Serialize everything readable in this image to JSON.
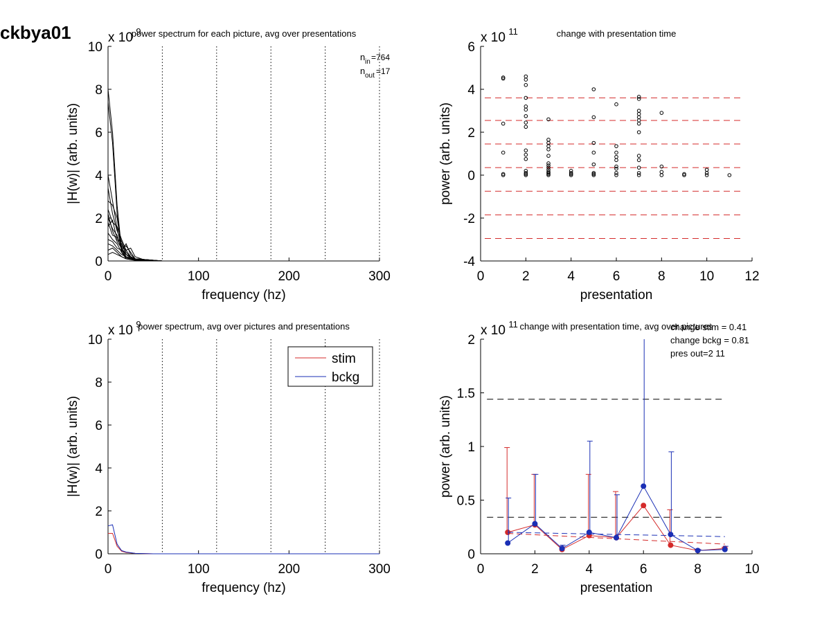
{
  "figure_label": "ckbya01",
  "chart_data": [
    {
      "id": "tl",
      "type": "line",
      "title": "power spectrum for each picture, avg over presentations",
      "xlabel": "frequency (hz)",
      "ylabel": "|H(w)| (arb. units)",
      "exponent": {
        "base": "x 10",
        "power": "9"
      },
      "xlim": [
        0,
        300
      ],
      "ylim": [
        0,
        10
      ],
      "xticks": [
        "0",
        "100",
        "200",
        "300"
      ],
      "yticks": [
        "0",
        "2",
        "4",
        "6",
        "8",
        "10"
      ],
      "vlines": [
        60,
        120,
        180,
        240,
        300
      ],
      "annotation": {
        "n_in": "764",
        "n_out": "17",
        "n_label": "n",
        "in_sub": "in",
        "out_sub": "out"
      },
      "curves": [
        [
          [
            0,
            8.0
          ],
          [
            5,
            6.0
          ],
          [
            10,
            2.6
          ],
          [
            15,
            0.5
          ],
          [
            20,
            0.15
          ],
          [
            30,
            0.05
          ],
          [
            40,
            0.02
          ],
          [
            50,
            0.01
          ],
          [
            60,
            0
          ],
          [
            300,
            0
          ]
        ],
        [
          [
            0,
            7.4
          ],
          [
            5,
            5.5
          ],
          [
            10,
            2.2
          ],
          [
            15,
            0.4
          ],
          [
            20,
            0.1
          ],
          [
            30,
            0.04
          ],
          [
            40,
            0.01
          ],
          [
            60,
            0
          ],
          [
            300,
            0
          ]
        ],
        [
          [
            0,
            4.0
          ],
          [
            5,
            2.8
          ],
          [
            10,
            1.5
          ],
          [
            15,
            0.6
          ],
          [
            20,
            0.2
          ],
          [
            30,
            0.05
          ],
          [
            40,
            0.01
          ],
          [
            60,
            0
          ],
          [
            300,
            0
          ]
        ],
        [
          [
            0,
            3.4
          ],
          [
            5,
            2.2
          ],
          [
            10,
            1.4
          ],
          [
            15,
            0.9
          ],
          [
            20,
            0.4
          ],
          [
            25,
            0.2
          ],
          [
            30,
            0.05
          ],
          [
            60,
            0
          ],
          [
            300,
            0
          ]
        ],
        [
          [
            0,
            2.8
          ],
          [
            5,
            2.6
          ],
          [
            10,
            2.0
          ],
          [
            15,
            0.6
          ],
          [
            20,
            0.3
          ],
          [
            30,
            0.1
          ],
          [
            60,
            0
          ],
          [
            300,
            0
          ]
        ],
        [
          [
            0,
            2.4
          ],
          [
            5,
            1.8
          ],
          [
            10,
            1.6
          ],
          [
            15,
            1.0
          ],
          [
            20,
            0.5
          ],
          [
            25,
            0.2
          ],
          [
            30,
            0.05
          ],
          [
            60,
            0
          ],
          [
            300,
            0
          ]
        ],
        [
          [
            0,
            2.0
          ],
          [
            5,
            1.5
          ],
          [
            10,
            1.2
          ],
          [
            15,
            0.5
          ],
          [
            20,
            0.8
          ],
          [
            25,
            0.3
          ],
          [
            30,
            0.1
          ],
          [
            60,
            0
          ],
          [
            300,
            0
          ]
        ],
        [
          [
            0,
            1.6
          ],
          [
            5,
            1.9
          ],
          [
            10,
            1.0
          ],
          [
            15,
            0.7
          ],
          [
            20,
            0.5
          ],
          [
            25,
            0.6
          ],
          [
            30,
            0.2
          ],
          [
            40,
            0.05
          ],
          [
            60,
            0
          ],
          [
            300,
            0
          ]
        ],
        [
          [
            0,
            1.3
          ],
          [
            5,
            1.0
          ],
          [
            10,
            0.8
          ],
          [
            15,
            0.4
          ],
          [
            20,
            0.2
          ],
          [
            30,
            0.1
          ],
          [
            45,
            0.05
          ],
          [
            60,
            0
          ],
          [
            300,
            0
          ]
        ],
        [
          [
            0,
            1.0
          ],
          [
            5,
            0.9
          ],
          [
            10,
            0.6
          ],
          [
            15,
            0.5
          ],
          [
            20,
            0.3
          ],
          [
            25,
            0.15
          ],
          [
            35,
            0.05
          ],
          [
            60,
            0
          ],
          [
            300,
            0
          ]
        ],
        [
          [
            0,
            0.8
          ],
          [
            5,
            0.7
          ],
          [
            10,
            0.5
          ],
          [
            15,
            0.3
          ],
          [
            20,
            0.2
          ],
          [
            30,
            0.08
          ],
          [
            50,
            0.02
          ],
          [
            60,
            0
          ],
          [
            300,
            0
          ]
        ],
        [
          [
            0,
            0.5
          ],
          [
            5,
            0.6
          ],
          [
            10,
            0.4
          ],
          [
            15,
            0.2
          ],
          [
            20,
            0.1
          ],
          [
            30,
            0.05
          ],
          [
            60,
            0
          ],
          [
            300,
            0
          ]
        ],
        [
          [
            0,
            2.2
          ],
          [
            5,
            1.4
          ],
          [
            10,
            0.9
          ],
          [
            15,
            0.6
          ],
          [
            20,
            0.7
          ],
          [
            25,
            0.4
          ],
          [
            30,
            0.1
          ],
          [
            60,
            0
          ],
          [
            300,
            0
          ]
        ],
        [
          [
            0,
            1.8
          ],
          [
            5,
            1.2
          ],
          [
            10,
            1.1
          ],
          [
            15,
            0.8
          ],
          [
            20,
            0.3
          ],
          [
            30,
            0.1
          ],
          [
            60,
            0
          ],
          [
            300,
            0
          ]
        ],
        [
          [
            0,
            0.3
          ],
          [
            5,
            0.4
          ],
          [
            10,
            0.3
          ],
          [
            15,
            0.2
          ],
          [
            20,
            0.1
          ],
          [
            30,
            0.03
          ],
          [
            60,
            0
          ],
          [
            300,
            0
          ]
        ]
      ]
    },
    {
      "id": "tr",
      "type": "scatter",
      "title": "change with presentation time",
      "xlabel": "presentation",
      "ylabel": "power (arb. units)",
      "exponent": {
        "base": "x 10",
        "power": "11"
      },
      "xlim": [
        0,
        12
      ],
      "ylim": [
        -4,
        6
      ],
      "xticks": [
        "0",
        "2",
        "4",
        "6",
        "8",
        "10",
        "12"
      ],
      "yticks": [
        "-4",
        "-2",
        "0",
        "2",
        "4",
        "6"
      ],
      "hlines": [
        3.6,
        2.55,
        1.45,
        0.35,
        -0.75,
        -1.85,
        -2.95
      ],
      "hline_xrange": [
        0,
        11.5
      ],
      "hline_color": "#d42a2a",
      "points": [
        [
          1,
          4.5
        ],
        [
          1,
          4.55
        ],
        [
          1,
          2.4
        ],
        [
          1,
          1.05
        ],
        [
          1,
          0.05
        ],
        [
          1,
          0
        ],
        [
          2,
          4.6
        ],
        [
          2,
          4.45
        ],
        [
          2,
          4.2
        ],
        [
          2,
          3.6
        ],
        [
          2,
          3.2
        ],
        [
          2,
          3.05
        ],
        [
          2,
          2.75
        ],
        [
          2,
          2.45
        ],
        [
          2,
          2.25
        ],
        [
          2,
          1.15
        ],
        [
          2,
          0.95
        ],
        [
          2,
          0.75
        ],
        [
          2,
          0.2
        ],
        [
          2,
          0.1
        ],
        [
          2,
          0.05
        ],
        [
          2,
          0
        ],
        [
          3,
          2.6
        ],
        [
          3,
          1.65
        ],
        [
          3,
          1.5
        ],
        [
          3,
          1.35
        ],
        [
          3,
          1.2
        ],
        [
          3,
          0.9
        ],
        [
          3,
          0.55
        ],
        [
          3,
          0.45
        ],
        [
          3,
          0.35
        ],
        [
          3,
          0.25
        ],
        [
          3,
          0.15
        ],
        [
          3,
          0.1
        ],
        [
          3,
          0.05
        ],
        [
          3,
          0
        ],
        [
          4,
          0.2
        ],
        [
          4,
          0.1
        ],
        [
          4,
          0.05
        ],
        [
          4,
          0
        ],
        [
          5,
          4.0
        ],
        [
          5,
          2.7
        ],
        [
          5,
          1.5
        ],
        [
          5,
          1.05
        ],
        [
          5,
          0.5
        ],
        [
          5,
          0.1
        ],
        [
          5,
          0.05
        ],
        [
          5,
          0
        ],
        [
          6,
          3.3
        ],
        [
          6,
          1.35
        ],
        [
          6,
          1.05
        ],
        [
          6,
          0.85
        ],
        [
          6,
          0.7
        ],
        [
          6,
          0.4
        ],
        [
          6,
          0.3
        ],
        [
          6,
          0.1
        ],
        [
          6,
          0
        ],
        [
          7,
          3.65
        ],
        [
          7,
          3.55
        ],
        [
          7,
          3.0
        ],
        [
          7,
          2.85
        ],
        [
          7,
          2.7
        ],
        [
          7,
          2.55
        ],
        [
          7,
          2.4
        ],
        [
          7,
          2.0
        ],
        [
          7,
          0.9
        ],
        [
          7,
          0.7
        ],
        [
          7,
          0.35
        ],
        [
          7,
          0.1
        ],
        [
          7,
          0
        ],
        [
          8,
          2.9
        ],
        [
          8,
          0.4
        ],
        [
          8,
          0.15
        ],
        [
          8,
          0
        ],
        [
          9,
          0.05
        ],
        [
          9,
          0
        ],
        [
          10,
          0.25
        ],
        [
          10,
          0.1
        ],
        [
          10,
          0
        ],
        [
          11,
          0
        ]
      ]
    },
    {
      "id": "bl",
      "type": "line",
      "title": "power spectrum, avg over pictures and presentations",
      "xlabel": "frequency (hz)",
      "ylabel": "|H(w)| (arb. units)",
      "exponent": {
        "base": "x 10",
        "power": "9"
      },
      "xlim": [
        0,
        300
      ],
      "ylim": [
        0,
        10
      ],
      "xticks": [
        "0",
        "100",
        "200",
        "300"
      ],
      "yticks": [
        "0",
        "2",
        "4",
        "6",
        "8",
        "10"
      ],
      "vlines": [
        60,
        120,
        180,
        240,
        300
      ],
      "series": [
        {
          "name": "stim",
          "color": "#d42a2a",
          "points": [
            [
              0,
              0.95
            ],
            [
              5,
              0.95
            ],
            [
              10,
              0.35
            ],
            [
              15,
              0.12
            ],
            [
              20,
              0.06
            ],
            [
              30,
              0.02
            ],
            [
              50,
              0
            ],
            [
              300,
              0
            ]
          ]
        },
        {
          "name": "bckg",
          "color": "#1a2fb5",
          "points": [
            [
              0,
              1.3
            ],
            [
              5,
              1.35
            ],
            [
              10,
              0.45
            ],
            [
              15,
              0.15
            ],
            [
              20,
              0.08
            ],
            [
              30,
              0.02
            ],
            [
              50,
              0
            ],
            [
              300,
              0
            ]
          ]
        }
      ],
      "legend": "top-right"
    },
    {
      "id": "br",
      "type": "line",
      "title": "change with presentation time, avg over pictures",
      "xlabel": "presentation",
      "ylabel": "power (arb. units)",
      "exponent": {
        "base": "x 10",
        "power": "11"
      },
      "xlim": [
        0,
        10
      ],
      "ylim": [
        0,
        2
      ],
      "xticks": [
        "0",
        "2",
        "4",
        "6",
        "8",
        "10"
      ],
      "yticks": [
        "0",
        "0.5",
        "1",
        "1.5",
        "2"
      ],
      "annotations": [
        "change stim = 0.41",
        "change bckg = 0.81",
        "pres out=2 11"
      ],
      "hlines": [
        1.44,
        0.34
      ],
      "hline_xrange": [
        1,
        9
      ],
      "series": [
        {
          "name": "stim",
          "color": "#d42a2a",
          "x": [
            1,
            2,
            3,
            4,
            5,
            6,
            7,
            8,
            9
          ],
          "y": [
            0.2,
            0.27,
            0.04,
            0.17,
            0.15,
            0.45,
            0.08,
            0.03,
            0.05
          ],
          "err": [
            0.79,
            0.47,
            0.03,
            0.57,
            0.43,
            null,
            0.33,
            0.01,
            0.01
          ],
          "trend": [
            [
              1,
              0.19
            ],
            [
              9,
              0.09
            ]
          ]
        },
        {
          "name": "bckg",
          "color": "#1a2fb5",
          "x": [
            1,
            2,
            3,
            4,
            5,
            6,
            7,
            8,
            9
          ],
          "y": [
            0.1,
            0.28,
            0.05,
            0.2,
            0.15,
            0.63,
            0.18,
            0.03,
            0.04
          ],
          "err": [
            0.42,
            0.46,
            0.03,
            0.85,
            0.4,
            1.42,
            0.77,
            0.01,
            0.03
          ],
          "trend": [
            [
              1,
              0.2
            ],
            [
              9,
              0.16
            ]
          ]
        }
      ]
    }
  ]
}
